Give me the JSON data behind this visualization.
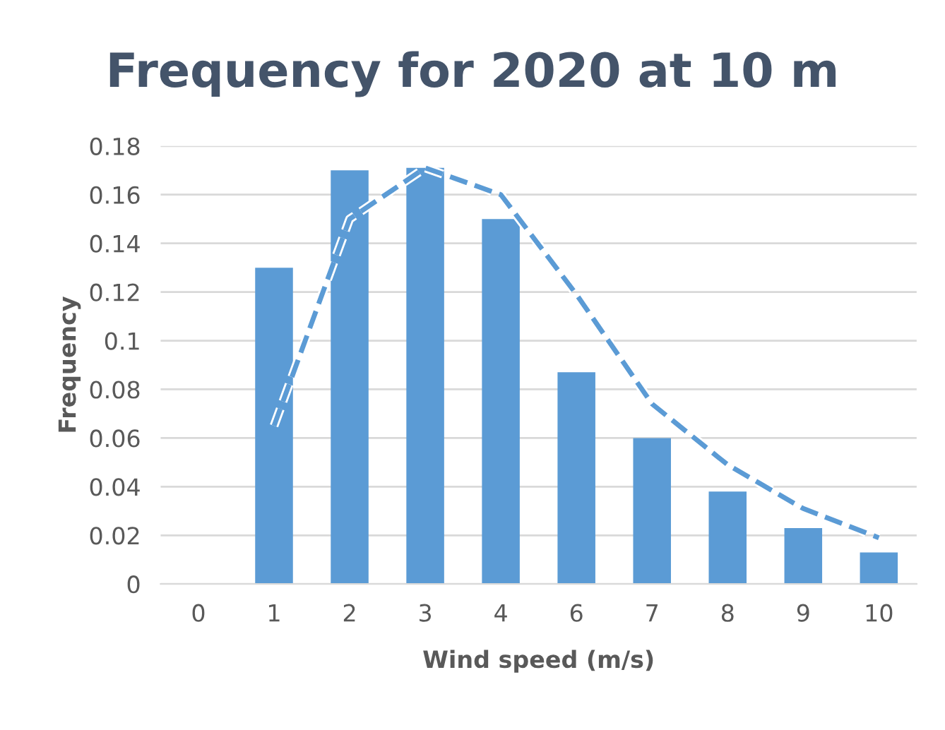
{
  "chart_data": {
    "type": "bar",
    "title": "Frequency for 2020 at 10 m",
    "xlabel": "Wind speed (m/s)",
    "ylabel": "Frequency",
    "categories": [
      "0",
      "1",
      "2",
      "3",
      "4",
      "6",
      "7",
      "8",
      "9",
      "10"
    ],
    "series": [
      {
        "color": "#5b9bd5",
        "values": [
          null,
          0.13,
          0.17,
          0.171,
          0.15,
          0.087,
          0.06,
          0.038,
          0.023,
          0.013
        ]
      },
      {
        "type": "line",
        "color": "#5b9bd5",
        "line_style": "dashed",
        "marker": "none",
        "values": [
          null,
          0.065,
          0.15,
          0.171,
          0.16,
          0.119,
          0.074,
          0.049,
          0.031,
          0.019
        ]
      }
    ],
    "ylim": [
      0,
      0.18
    ],
    "yticks": [
      0,
      0.02,
      0.04,
      0.06,
      0.08,
      {
        "value": 0.1,
        "label": "0.1"
      },
      0.12,
      0.14,
      0.16,
      0.18
    ],
    "grid": "y",
    "legend": false
  }
}
